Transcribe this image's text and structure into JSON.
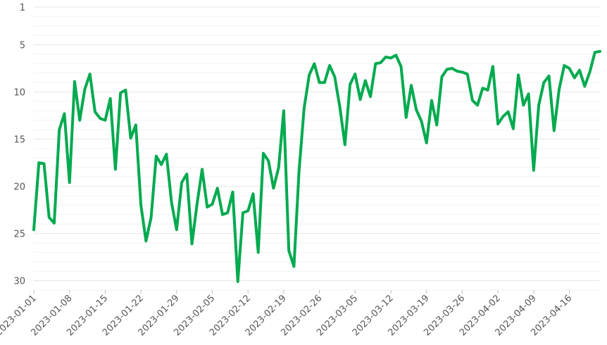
{
  "chart_data": {
    "type": "line",
    "title": "",
    "xlabel": "",
    "ylabel": "",
    "y_axis_reversed": true,
    "ylim": [
      1,
      31
    ],
    "yticks": [
      1,
      5,
      10,
      15,
      20,
      25,
      30
    ],
    "xlim": [
      "2023-01-01",
      "2023-04-22"
    ],
    "xticks": [
      "2023-01-01",
      "2023-01-08",
      "2023-01-15",
      "2023-01-22",
      "2023-01-29",
      "2023-02-05",
      "2023-02-12",
      "2023-02-19",
      "2023-02-26",
      "2023-03-05",
      "2023-03-12",
      "2023-03-19",
      "2023-03-26",
      "2023-04-02",
      "2023-04-09",
      "2023-04-16"
    ],
    "grid": true,
    "legend": "none",
    "line_color": "#00aa4f",
    "series": [
      {
        "x": [
          "2023-01-01",
          "2023-01-02",
          "2023-01-03",
          "2023-01-04",
          "2023-01-05",
          "2023-01-06",
          "2023-01-07",
          "2023-01-08",
          "2023-01-09",
          "2023-01-10",
          "2023-01-11",
          "2023-01-12",
          "2023-01-13",
          "2023-01-14",
          "2023-01-15",
          "2023-01-16",
          "2023-01-17",
          "2023-01-18",
          "2023-01-19",
          "2023-01-20",
          "2023-01-21",
          "2023-01-22",
          "2023-01-23",
          "2023-01-24",
          "2023-01-25",
          "2023-01-26",
          "2023-01-27",
          "2023-01-28",
          "2023-01-29",
          "2023-01-30",
          "2023-01-31",
          "2023-02-01",
          "2023-02-02",
          "2023-02-03",
          "2023-02-04",
          "2023-02-05",
          "2023-02-06",
          "2023-02-07",
          "2023-02-08",
          "2023-02-09",
          "2023-02-10",
          "2023-02-11",
          "2023-02-12",
          "2023-02-13",
          "2023-02-14",
          "2023-02-15",
          "2023-02-16",
          "2023-02-17",
          "2023-02-18",
          "2023-02-19",
          "2023-02-20",
          "2023-02-21",
          "2023-02-22",
          "2023-02-23",
          "2023-02-24",
          "2023-02-25",
          "2023-02-26",
          "2023-02-27",
          "2023-02-28",
          "2023-03-01",
          "2023-03-02",
          "2023-03-03",
          "2023-03-04",
          "2023-03-05",
          "2023-03-06",
          "2023-03-07",
          "2023-03-08",
          "2023-03-09",
          "2023-03-10",
          "2023-03-11",
          "2023-03-12",
          "2023-03-13",
          "2023-03-14",
          "2023-03-15",
          "2023-03-16",
          "2023-03-17",
          "2023-03-18",
          "2023-03-19",
          "2023-03-20",
          "2023-03-21",
          "2023-03-22",
          "2023-03-23",
          "2023-03-24",
          "2023-03-25",
          "2023-03-26",
          "2023-03-27",
          "2023-03-28",
          "2023-03-29",
          "2023-03-30",
          "2023-03-31",
          "2023-04-01",
          "2023-04-02",
          "2023-04-03",
          "2023-04-04",
          "2023-04-05",
          "2023-04-06",
          "2023-04-07",
          "2023-04-08",
          "2023-04-09",
          "2023-04-10",
          "2023-04-11",
          "2023-04-12",
          "2023-04-13",
          "2023-04-14",
          "2023-04-15",
          "2023-04-16",
          "2023-04-17",
          "2023-04-18",
          "2023-04-19",
          "2023-04-20",
          "2023-04-21",
          "2023-04-22"
        ],
        "y": [
          24.6,
          17.5,
          17.6,
          23.3,
          23.9,
          14.0,
          12.3,
          19.6,
          8.9,
          13.0,
          9.7,
          8.1,
          12.1,
          12.8,
          13.0,
          10.7,
          18.2,
          10.1,
          9.8,
          14.9,
          13.5,
          22.0,
          25.8,
          23.3,
          16.8,
          17.7,
          16.6,
          21.7,
          24.6,
          19.6,
          18.7,
          26.1,
          21.9,
          18.2,
          22.2,
          21.9,
          20.2,
          23.0,
          22.8,
          20.6,
          30.1,
          22.8,
          22.6,
          20.8,
          27.0,
          16.5,
          17.3,
          20.2,
          18.0,
          12.0,
          26.8,
          28.5,
          18.4,
          11.7,
          8.2,
          7.0,
          9.0,
          9.0,
          7.2,
          8.4,
          11.6,
          15.6,
          9.2,
          8.1,
          10.8,
          8.8,
          10.5,
          7.0,
          6.9,
          6.3,
          6.4,
          6.1,
          7.3,
          12.7,
          9.3,
          11.9,
          13.1,
          15.4,
          10.9,
          13.5,
          8.4,
          7.6,
          7.5,
          7.8,
          7.9,
          8.1,
          10.9,
          11.4,
          9.6,
          9.8,
          7.3,
          13.4,
          12.6,
          12.1,
          13.9,
          8.2,
          11.4,
          10.2,
          18.3,
          11.4,
          9.0,
          8.3,
          14.1,
          9.7,
          7.2,
          7.5,
          8.5,
          7.7,
          9.4,
          7.9,
          5.8,
          5.7
        ]
      }
    ]
  }
}
